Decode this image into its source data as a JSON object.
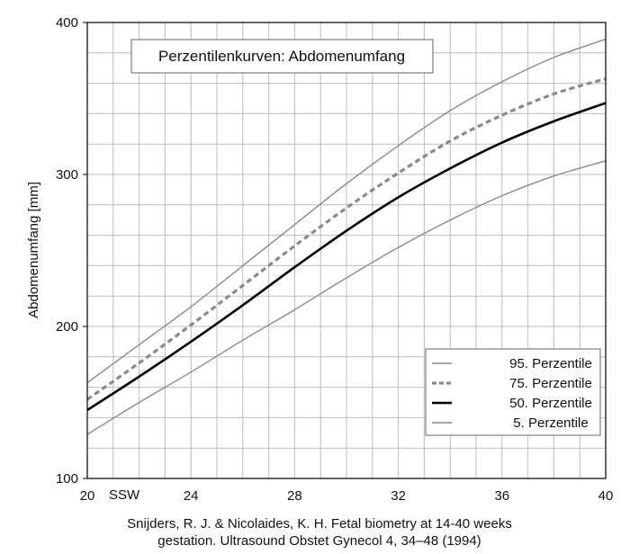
{
  "chart_data": {
    "type": "line",
    "title": "Perzentilenkurven: Abdomenumfang",
    "xlabel": "SSW",
    "ylabel": "Abdomenumfang [mm]",
    "xlim": [
      20,
      40
    ],
    "ylim": [
      100,
      400
    ],
    "x_ticks": [
      20,
      24,
      28,
      32,
      36,
      40
    ],
    "y_ticks": [
      100,
      200,
      300,
      400
    ],
    "grid": true,
    "legend_position": "bottom-right",
    "x": [
      20,
      22,
      24,
      26,
      28,
      30,
      32,
      34,
      36,
      38,
      40
    ],
    "series": [
      {
        "name": "95. Perzentile",
        "color": "#8a8a8a",
        "style": "solid",
        "values": [
          163,
          188,
          213,
          240,
          267,
          294,
          319,
          342,
          361,
          377,
          389
        ]
      },
      {
        "name": "75. Perzentile",
        "color": "#8a8a8a",
        "style": "dashed",
        "values": [
          152,
          176,
          201,
          227,
          253,
          278,
          301,
          322,
          339,
          353,
          363
        ]
      },
      {
        "name": "50. Perzentile",
        "color": "#000000",
        "style": "bold",
        "values": [
          145,
          167,
          190,
          214,
          239,
          263,
          285,
          304,
          321,
          335,
          347
        ]
      },
      {
        "name": "5. Perzentile",
        "color": "#8a8a8a",
        "style": "solid",
        "values": [
          129,
          150,
          170,
          191,
          211,
          232,
          252,
          270,
          286,
          299,
          309
        ]
      }
    ]
  },
  "citation": {
    "line1": "Snijders, R. J. & Nicolaides, K. H. Fetal biometry at 14-40 weeks",
    "line2": "gestation. Ultrasound Obstet Gynecol 4, 34–48 (1994)"
  }
}
